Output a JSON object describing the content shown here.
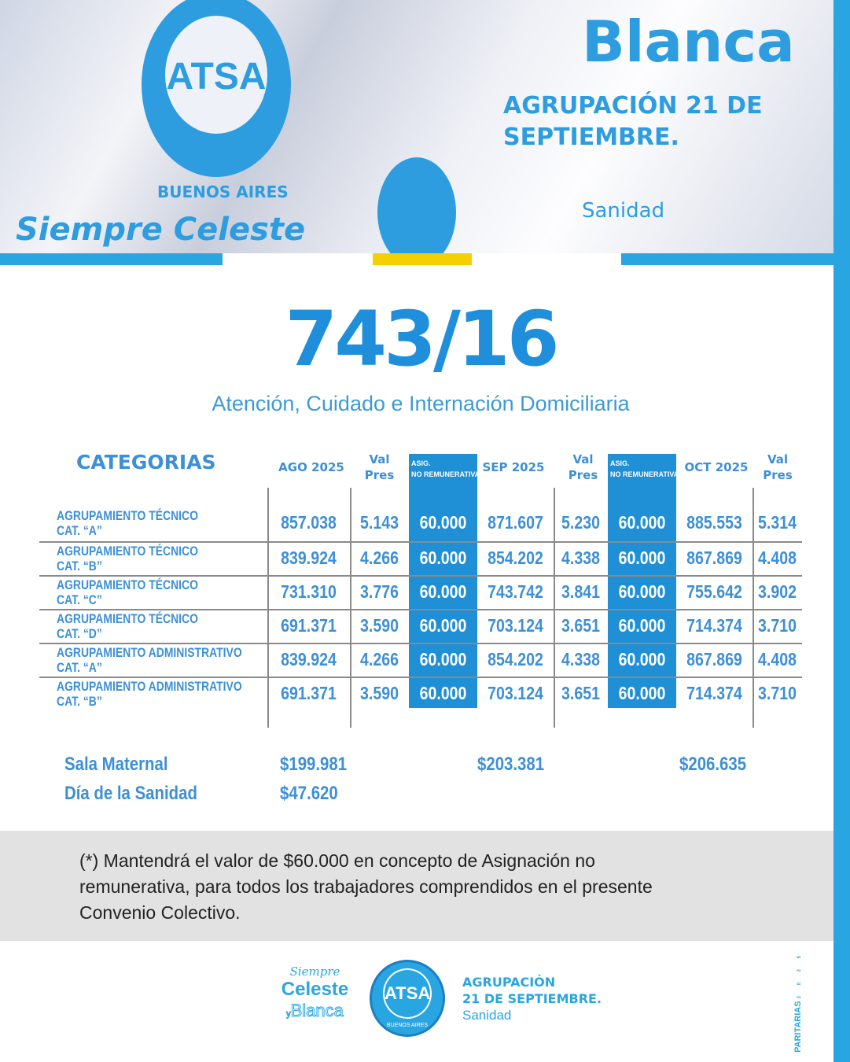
{
  "header_photo": {
    "flag_texts": [
      "ATSA",
      "BUENOS AIRES",
      "Siempre Celeste",
      "Blanca",
      "AGRUPACIÓN 21 DE SEPTIEMBRE.",
      "Sanidad"
    ]
  },
  "title": "743/16",
  "subtitle": "Atención, Cuidado e Internación Domiciliaria",
  "colors": {
    "accent": "#1f8fd6",
    "strip": "#29a6e2",
    "yellow": "#f5d000",
    "note_bg": "#e2e2e2"
  },
  "table": {
    "headers": {
      "categorias": "CATEGORIAS",
      "ago": "AGO 2025",
      "val": "Val",
      "pres": "Pres",
      "asig1": "ASIG.",
      "asig2": "NO REMUNERATIVA",
      "sep": "SEP 2025",
      "oct": "OCT 2025"
    },
    "rows": [
      {
        "l1": "AGRUPAMIENTO TÉCNICO",
        "l2": "CAT. “A”",
        "v": [
          "857.038",
          "5.143",
          "60.000",
          "871.607",
          "5.230",
          "60.000",
          "885.553",
          "5.314"
        ]
      },
      {
        "l1": "AGRUPAMIENTO TÉCNICO",
        "l2": "CAT. “B”",
        "v": [
          "839.924",
          "4.266",
          "60.000",
          "854.202",
          "4.338",
          "60.000",
          "867.869",
          "4.408"
        ]
      },
      {
        "l1": "AGRUPAMIENTO TÉCNICO",
        "l2": "CAT. “C”",
        "v": [
          "731.310",
          "3.776",
          "60.000",
          "743.742",
          "3.841",
          "60.000",
          "755.642",
          "3.902"
        ]
      },
      {
        "l1": "AGRUPAMIENTO TÉCNICO",
        "l2": "CAT. “D”",
        "v": [
          "691.371",
          "3.590",
          "60.000",
          "703.124",
          "3.651",
          "60.000",
          "714.374",
          "3.710"
        ]
      },
      {
        "l1": "AGRUPAMIENTO ADMINISTRATIVO",
        "l2": "CAT. “A”",
        "v": [
          "839.924",
          "4.266",
          "60.000",
          "854.202",
          "4.338",
          "60.000",
          "867.869",
          "4.408"
        ]
      },
      {
        "l1": "AGRUPAMIENTO ADMINISTRATIVO",
        "l2": "CAT. “B”",
        "v": [
          "691.371",
          "3.590",
          "60.000",
          "703.124",
          "3.651",
          "60.000",
          "714.374",
          "3.710"
        ]
      }
    ]
  },
  "extras": {
    "sala_label": "Sala Maternal",
    "sala": [
      "$199.981",
      "$203.381",
      "$206.635"
    ],
    "dia_label": "Día de la Sanidad",
    "dia": "$47.620"
  },
  "note": "(*) Mantendrá el valor de $60.000 en concepto de Asignación no remunerativa, para todos los trabajadores comprendidos en el presente Convenio Colectivo.",
  "footer": {
    "siempre": "Siempre",
    "celeste": "Celeste",
    "y": "y",
    "blanca": "Blanca",
    "logo": "ATSA",
    "logo_ring": "BUENOS AIRES",
    "agr1": "AGRUPACIÓN",
    "agr2": "21 DE SEPTIEMBRE.",
    "sanidad": "Sanidad",
    "paritarias": "PARITARIAS",
    "year": "2 0 2 5"
  }
}
